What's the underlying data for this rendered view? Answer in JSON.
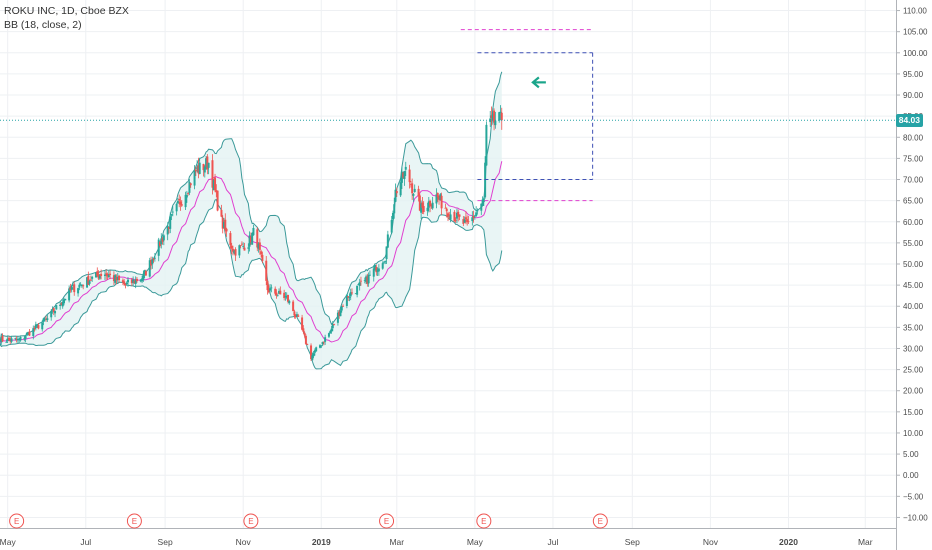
{
  "legend": {
    "symbol_line": "ROKU INC, 1D, Cboe BZX",
    "indicator_line": "BB (18, close, 2)"
  },
  "last_price": "84.03",
  "colors": {
    "background": "#ffffff",
    "grid": "#eef0f3",
    "axis_text": "#4a4a4a",
    "up_candle": "#26a69a",
    "down_candle": "#ef5350",
    "bb_band": "#3c9a9a",
    "bb_fill": "#e3f2f2",
    "bb_basis": "#e040d0",
    "price_line": "#26a3a6",
    "pattern_magenta": "#e040d0",
    "pattern_blue": "#3f51b5",
    "arrow": "#1aa58a",
    "earnings_marker": "#ef5350"
  },
  "chart_data": {
    "type": "candlestick",
    "symbol": "ROKU INC",
    "interval": "1D",
    "exchange": "Cboe BZX",
    "x_range": [
      "2018-04-25",
      "2020-03-25"
    ],
    "ylim": [
      -12.5,
      112.5
    ],
    "y_ticks": [
      -10,
      -5,
      0,
      5,
      10,
      15,
      20,
      25,
      30,
      35,
      40,
      45,
      50,
      55,
      60,
      65,
      70,
      75,
      80,
      85,
      90,
      95,
      100,
      105,
      110
    ],
    "y_tick_labels": [
      "−10.00",
      "−5.00",
      "0.00",
      "5.00",
      "10.00",
      "15.00",
      "20.00",
      "25.00",
      "30.00",
      "35.00",
      "40.00",
      "45.00",
      "50.00",
      "55.00",
      "60.00",
      "65.00",
      "70.00",
      "75.00",
      "80.00",
      "85.00",
      "90.00",
      "95.00",
      "100.00",
      "105.00",
      "110.00"
    ],
    "x_ticks": [
      {
        "date": "2018-05-01",
        "label": "May"
      },
      {
        "date": "2018-07-01",
        "label": "Jul"
      },
      {
        "date": "2018-09-01",
        "label": "Sep"
      },
      {
        "date": "2018-11-01",
        "label": "Nov"
      },
      {
        "date": "2019-01-01",
        "label": "2019",
        "bold": true
      },
      {
        "date": "2019-03-01",
        "label": "Mar"
      },
      {
        "date": "2019-05-01",
        "label": "May"
      },
      {
        "date": "2019-07-01",
        "label": "Jul"
      },
      {
        "date": "2019-09-01",
        "label": "Sep"
      },
      {
        "date": "2019-11-01",
        "label": "Nov"
      },
      {
        "date": "2020-01-01",
        "label": "2020",
        "bold": true
      },
      {
        "date": "2020-03-01",
        "label": "Mar"
      }
    ],
    "earnings_label": "E",
    "earnings_dates": [
      "2018-05-08",
      "2018-08-08",
      "2018-11-07",
      "2019-02-21",
      "2019-05-08",
      "2019-08-07"
    ],
    "close_path": [
      {
        "date": "2018-04-25",
        "close": 32
      },
      {
        "date": "2018-05-10",
        "close": 32
      },
      {
        "date": "2018-06-01",
        "close": 37
      },
      {
        "date": "2018-06-20",
        "close": 44
      },
      {
        "date": "2018-07-15",
        "close": 48
      },
      {
        "date": "2018-08-01",
        "close": 45
      },
      {
        "date": "2018-08-15",
        "close": 47
      },
      {
        "date": "2018-09-05",
        "close": 60
      },
      {
        "date": "2018-09-25",
        "close": 72
      },
      {
        "date": "2018-10-05",
        "close": 74
      },
      {
        "date": "2018-10-15",
        "close": 60
      },
      {
        "date": "2018-10-25",
        "close": 53
      },
      {
        "date": "2018-11-05",
        "close": 55
      },
      {
        "date": "2018-11-10",
        "close": 58
      },
      {
        "date": "2018-11-20",
        "close": 44
      },
      {
        "date": "2018-12-05",
        "close": 42
      },
      {
        "date": "2018-12-15",
        "close": 36
      },
      {
        "date": "2018-12-24",
        "close": 28
      },
      {
        "date": "2019-01-08",
        "close": 34
      },
      {
        "date": "2019-01-20",
        "close": 42
      },
      {
        "date": "2019-02-05",
        "close": 46
      },
      {
        "date": "2019-02-20",
        "close": 52
      },
      {
        "date": "2019-02-28",
        "close": 67
      },
      {
        "date": "2019-03-08",
        "close": 72
      },
      {
        "date": "2019-03-20",
        "close": 63
      },
      {
        "date": "2019-04-01",
        "close": 66
      },
      {
        "date": "2019-04-12",
        "close": 62
      },
      {
        "date": "2019-04-25",
        "close": 59
      },
      {
        "date": "2019-05-08",
        "close": 65
      },
      {
        "date": "2019-05-10",
        "close": 82
      },
      {
        "date": "2019-05-17",
        "close": 84
      },
      {
        "date": "2019-05-22",
        "close": 84.03
      }
    ],
    "bollinger_bands": {
      "period": 18,
      "source": "close",
      "stddev": 2
    },
    "annotations": [
      {
        "type": "horizontal_line",
        "value": 84.03,
        "style": "dotted",
        "color": "#26a3a6"
      },
      {
        "type": "dashed_segment",
        "color": "#e040d0",
        "y": 105.5,
        "from": "2019-04-20",
        "to": "2019-08-01"
      },
      {
        "type": "dashed_segment",
        "color": "#3f51b5",
        "y": 100,
        "from": "2019-05-03",
        "to": "2019-08-01"
      },
      {
        "type": "dashed_segment",
        "color": "#3f51b5",
        "y": 70,
        "from": "2019-05-03",
        "to": "2019-08-01"
      },
      {
        "type": "dashed_vertical",
        "color": "#3f51b5",
        "date": "2019-08-01",
        "from": 70,
        "to": 100
      },
      {
        "type": "dashed_segment",
        "color": "#e040d0",
        "y": 65,
        "from": "2019-05-03",
        "to": "2019-08-01"
      },
      {
        "type": "arrow",
        "direction": "left",
        "date": "2019-06-20",
        "y": 93,
        "color": "#1aa58a"
      }
    ]
  }
}
